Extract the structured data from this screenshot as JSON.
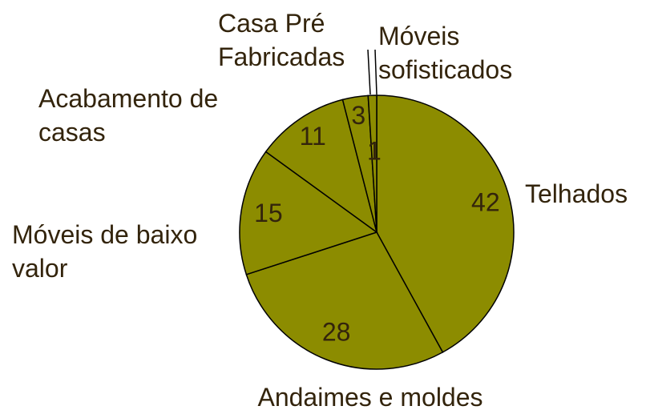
{
  "chart_data": {
    "type": "pie",
    "categories": [
      "Telhados",
      "Andaimes e moldes",
      "Móveis de baixo valor",
      "Acabamento de casas",
      "Casa Pré Fabricadas",
      "Móveis sofisticados"
    ],
    "values": [
      42,
      28,
      15,
      11,
      3,
      1
    ],
    "color": "#8c8c00"
  }
}
